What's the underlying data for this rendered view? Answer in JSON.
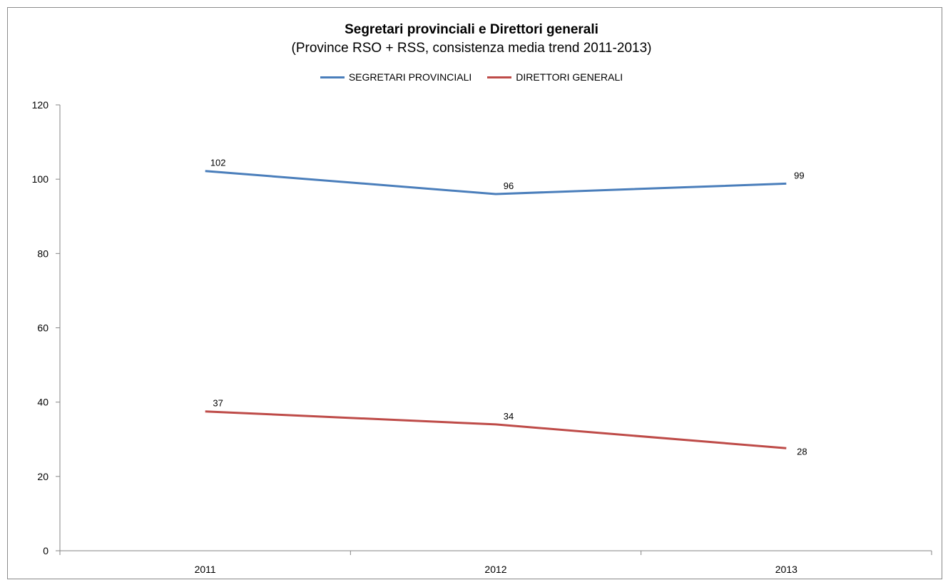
{
  "chart_data": {
    "type": "line",
    "title": "Segretari provinciali e Direttori generali",
    "subtitle": "(Province RSO + RSS, consistenza media trend 2011-2013)",
    "categories": [
      "2011",
      "2012",
      "2013"
    ],
    "series": [
      {
        "name": "SEGRETARI PROVINCIALI",
        "values": [
          102,
          96,
          99
        ],
        "plot_values": [
          102.2,
          96.0,
          98.8
        ],
        "labels": [
          "102",
          "96",
          "99"
        ],
        "color": "#4a7ebb"
      },
      {
        "name": "DIRETTORI GENERALI",
        "values": [
          37,
          34,
          28
        ],
        "plot_values": [
          37.5,
          34.0,
          27.6
        ],
        "labels": [
          "37",
          "34",
          "28"
        ],
        "color": "#be4b48"
      }
    ],
    "ylim": [
      0,
      120
    ],
    "yticks": [
      0,
      20,
      40,
      60,
      80,
      100,
      120
    ],
    "xlabel": "",
    "ylabel": "",
    "grid": false,
    "legend_position": "top"
  }
}
